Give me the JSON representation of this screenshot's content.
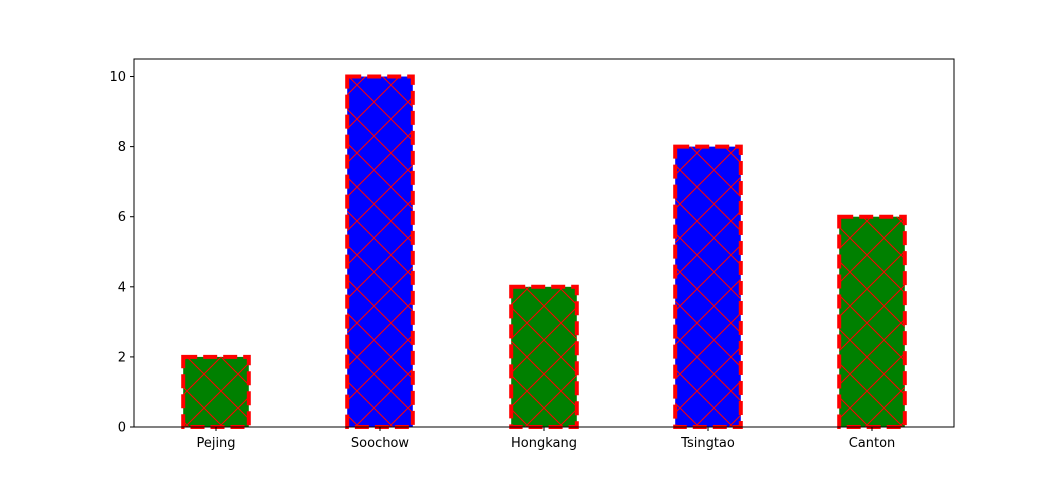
{
  "chart_data": {
    "type": "bar",
    "categories": [
      "Pejing",
      "Soochow",
      "Hongkang",
      "Tsingtao",
      "Canton"
    ],
    "values": [
      2,
      10,
      4,
      8,
      6
    ],
    "bar_colors": [
      "#008000",
      "#0000ff",
      "#008000",
      "#0000ff",
      "#008000"
    ],
    "edge_color": "#ff0000",
    "edge_style": "dashed",
    "hatch": "crosshatch",
    "hatch_color": "#ff0000",
    "title": "",
    "xlabel": "",
    "ylabel": "",
    "ylim": [
      0,
      10.5
    ],
    "yticks": [
      0,
      2,
      4,
      6,
      8,
      10
    ],
    "grid": false
  }
}
